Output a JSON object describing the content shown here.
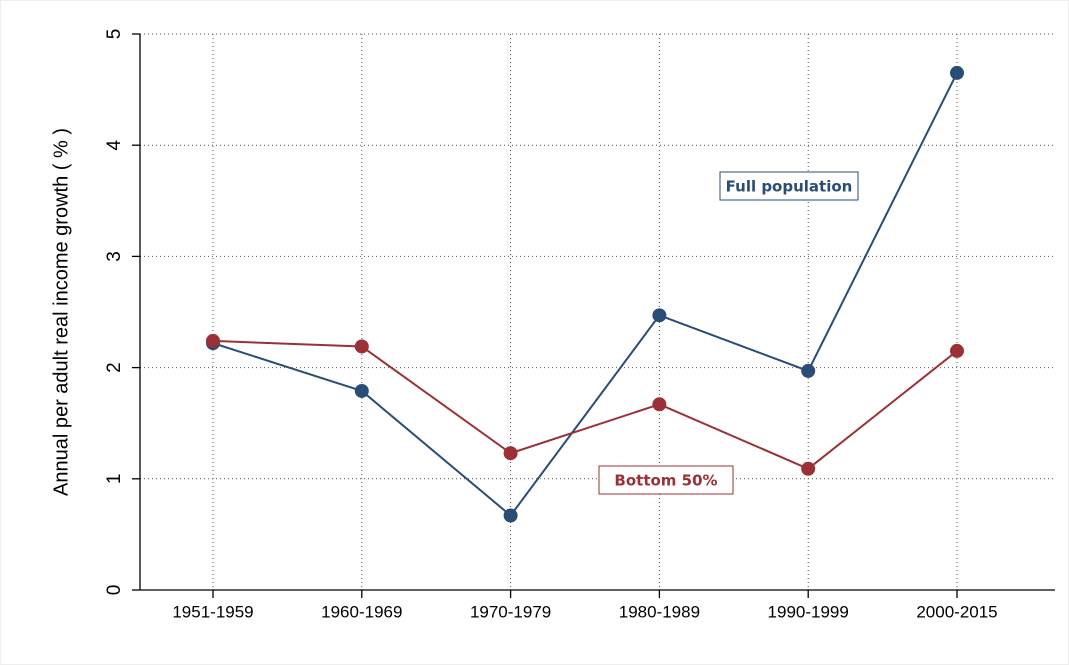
{
  "chart_data": {
    "type": "line",
    "y_label": "Annual per adult real income growth ( % )",
    "categories": [
      "1951-1959",
      "1960-1969",
      "1970-1979",
      "1980-1989",
      "1990-1999",
      "2000-2015"
    ],
    "series": [
      {
        "name": "Full population",
        "color": "#2a4d75",
        "values": [
          2.22,
          1.79,
          0.67,
          2.47,
          1.97,
          4.65
        ]
      },
      {
        "name": "Bottom 50%",
        "color": "#9b3036",
        "values": [
          2.24,
          2.19,
          1.23,
          1.67,
          1.09,
          2.15
        ]
      }
    ],
    "ylim": [
      0,
      5
    ],
    "yticks": [
      0,
      1,
      2,
      3,
      4,
      5
    ],
    "grid": true
  }
}
